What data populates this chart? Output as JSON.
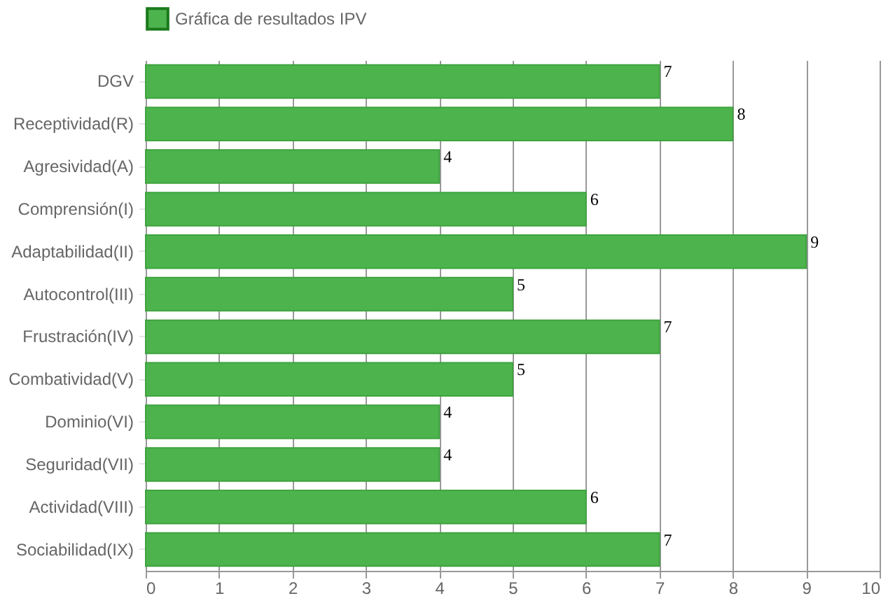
{
  "chart_data": {
    "type": "bar",
    "orientation": "horizontal",
    "categories": [
      "DGV",
      "Receptividad(R)",
      "Agresividad(A)",
      "Comprensión(I)",
      "Adaptabilidad(II)",
      "Autocontrol(III)",
      "Frustración(IV)",
      "Combatividad(V)",
      "Dominio(VI)",
      "Seguridad(VII)",
      "Actividad(VIII)",
      "Sociabilidad(IX)"
    ],
    "series": [
      {
        "name": "Gráfica de resultados IPV",
        "color": "#4db34d",
        "values": [
          7,
          8,
          4,
          6,
          9,
          5,
          7,
          5,
          4,
          4,
          6,
          7
        ]
      }
    ],
    "xlim": [
      0,
      10
    ],
    "xticks": [
      0,
      1,
      2,
      3,
      4,
      5,
      6,
      7,
      8,
      9,
      10
    ],
    "grid": "x",
    "legend": "top",
    "data_labels": true
  }
}
